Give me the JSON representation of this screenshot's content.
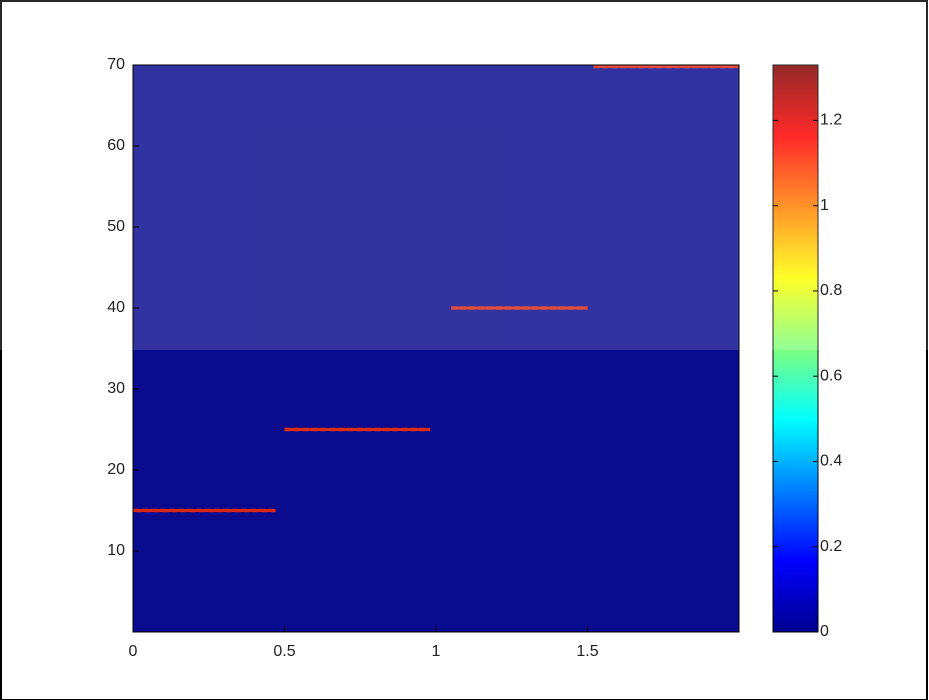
{
  "chart_data": {
    "type": "spectrogram",
    "xlim": [
      0,
      2
    ],
    "xticks": [
      0,
      0.5,
      1,
      1.5
    ],
    "ylim": [
      0,
      70
    ],
    "yticks": [
      10,
      20,
      30,
      40,
      50,
      60,
      70
    ],
    "clim": [
      0,
      1.33
    ],
    "cticks": [
      0,
      0.2,
      0.4,
      0.6,
      0.8,
      1,
      1.2
    ],
    "colormap": "jet",
    "segments": [
      {
        "x": [
          0,
          0.47
        ],
        "y": 15,
        "value": 1.1
      },
      {
        "x": [
          0.5,
          0.98
        ],
        "y": 25,
        "value": 1.1
      },
      {
        "x": [
          1.05,
          1.5
        ],
        "y": 40,
        "value": 1.1
      },
      {
        "x": [
          1.52,
          2
        ],
        "y": 70,
        "value": 1.1
      }
    ]
  }
}
